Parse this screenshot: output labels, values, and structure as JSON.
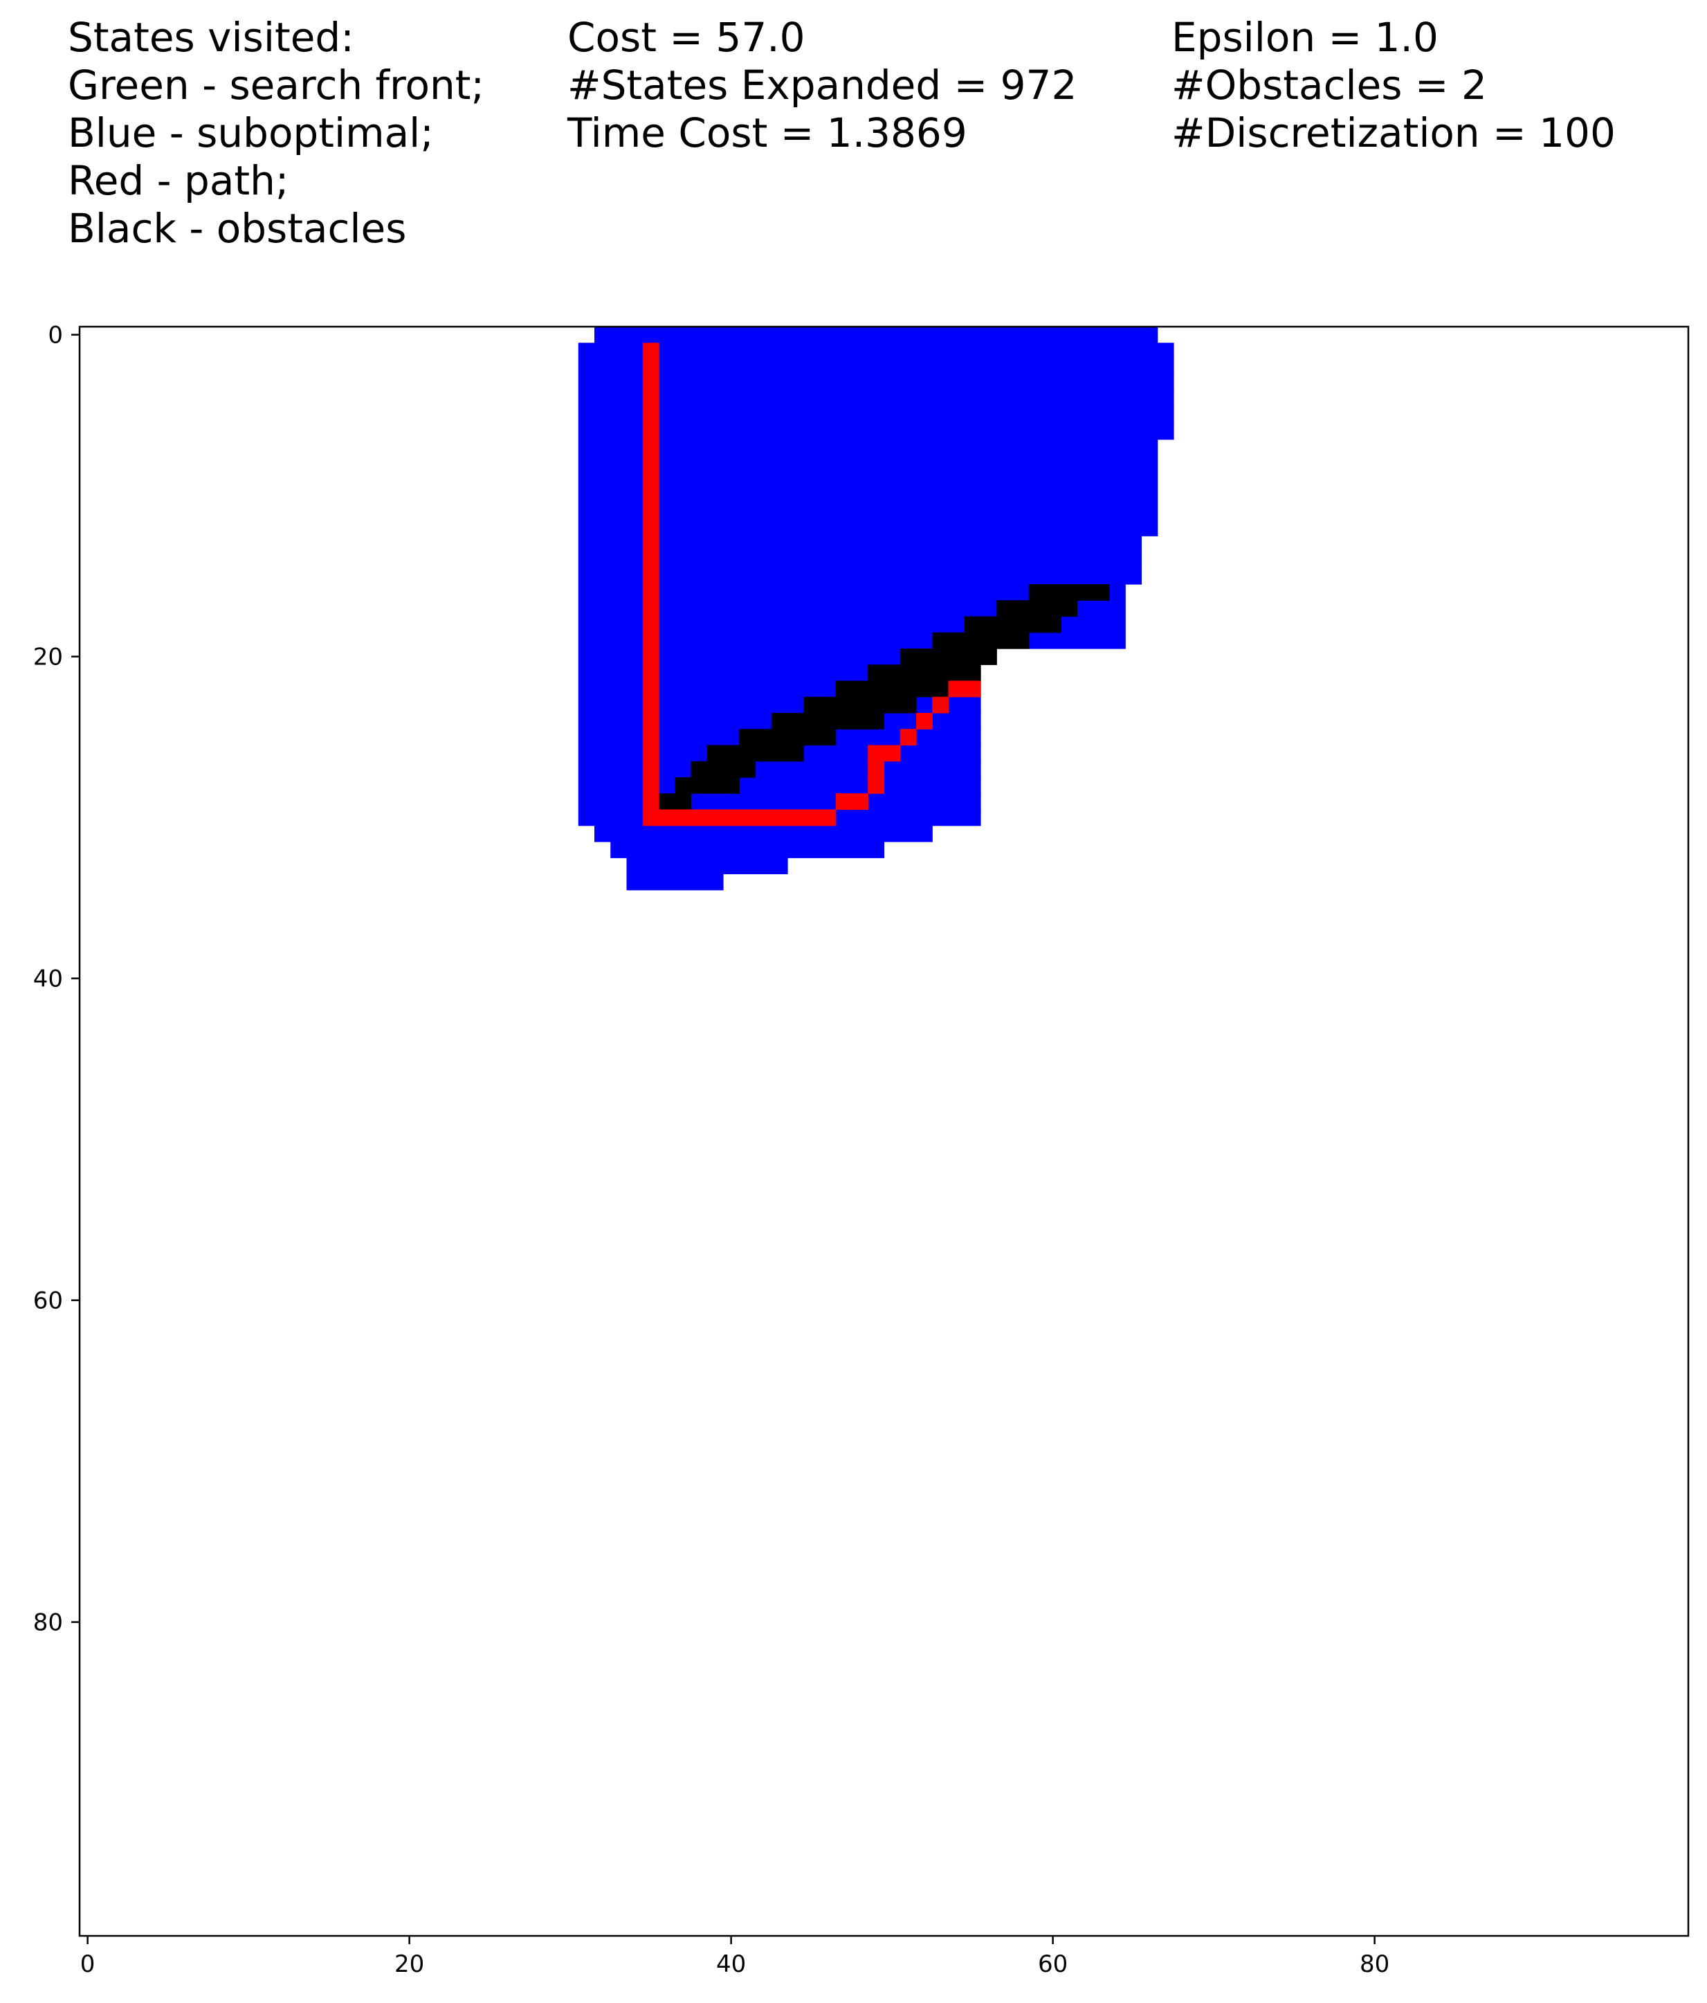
{
  "header": {
    "legend_lines": [
      "States visited:",
      "Green - search front;",
      "Blue - suboptimal;",
      "Red - path;",
      "Black - obstacles"
    ],
    "stats_lines": [
      "Cost = 57.0",
      "#States Expanded = 972",
      "Time Cost = 1.3869"
    ],
    "params_lines": [
      "Epsilon = 1.0",
      "#Obstacles = 2",
      "#Discretization = 100"
    ]
  },
  "colors": {
    "suboptimal": "#0000ff",
    "path": "#ff0000",
    "obstacle": "#000000",
    "search_front": "#00ff00",
    "background": "#ffffff"
  },
  "chart_data": {
    "type": "heatmap",
    "grid_size": 100,
    "xlim": [
      -0.5,
      99.5
    ],
    "ylim": [
      99.5,
      -0.5
    ],
    "y_inverted": true,
    "x_ticks": [
      0,
      20,
      40,
      60,
      80
    ],
    "y_ticks": [
      0,
      20,
      40,
      60,
      80
    ],
    "x_tick_labels": [
      "0",
      "20",
      "40",
      "60",
      "80"
    ],
    "y_tick_labels": [
      "0",
      "20",
      "40",
      "60",
      "80"
    ],
    "grid": false,
    "suboptimal_rows": [
      {
        "row": 0,
        "x": [
          32,
          66
        ]
      },
      {
        "row": 1,
        "x": [
          31,
          67
        ]
      },
      {
        "row": 2,
        "x": [
          31,
          67
        ]
      },
      {
        "row": 3,
        "x": [
          31,
          67
        ]
      },
      {
        "row": 4,
        "x": [
          31,
          67
        ]
      },
      {
        "row": 5,
        "x": [
          31,
          67
        ]
      },
      {
        "row": 6,
        "x": [
          31,
          67
        ]
      },
      {
        "row": 7,
        "x": [
          31,
          66
        ]
      },
      {
        "row": 8,
        "x": [
          31,
          66
        ]
      },
      {
        "row": 9,
        "x": [
          31,
          66
        ]
      },
      {
        "row": 10,
        "x": [
          31,
          66
        ]
      },
      {
        "row": 11,
        "x": [
          31,
          66
        ]
      },
      {
        "row": 12,
        "x": [
          31,
          66
        ]
      },
      {
        "row": 13,
        "x": [
          31,
          65
        ]
      },
      {
        "row": 14,
        "x": [
          31,
          65
        ]
      },
      {
        "row": 15,
        "x": [
          31,
          65
        ]
      },
      {
        "row": 16,
        "x": [
          31,
          64
        ]
      },
      {
        "row": 17,
        "x": [
          31,
          64
        ]
      },
      {
        "row": 18,
        "x": [
          31,
          64
        ]
      },
      {
        "row": 19,
        "x": [
          31,
          64
        ]
      },
      {
        "row": 20,
        "x": [
          31,
          55
        ]
      },
      {
        "row": 21,
        "x": [
          31,
          55
        ]
      },
      {
        "row": 22,
        "x": [
          31,
          55
        ]
      },
      {
        "row": 23,
        "x": [
          31,
          55
        ]
      },
      {
        "row": 24,
        "x": [
          31,
          55
        ]
      },
      {
        "row": 25,
        "x": [
          31,
          55
        ]
      },
      {
        "row": 26,
        "x": [
          31,
          55
        ]
      },
      {
        "row": 27,
        "x": [
          31,
          55
        ]
      },
      {
        "row": 28,
        "x": [
          31,
          55
        ]
      },
      {
        "row": 29,
        "x": [
          31,
          55
        ]
      },
      {
        "row": 30,
        "x": [
          31,
          55
        ]
      },
      {
        "row": 31,
        "x": [
          32,
          52
        ]
      },
      {
        "row": 32,
        "x": [
          33,
          49
        ]
      },
      {
        "row": 33,
        "x": [
          34,
          43
        ]
      },
      {
        "row": 34,
        "x": [
          34,
          39
        ]
      }
    ],
    "obstacle_rows": [
      {
        "row": 16,
        "x": [
          59,
          63
        ]
      },
      {
        "row": 17,
        "x": [
          57,
          61
        ]
      },
      {
        "row": 18,
        "x": [
          55,
          60
        ]
      },
      {
        "row": 19,
        "x": [
          53,
          58
        ]
      },
      {
        "row": 20,
        "x": [
          51,
          56
        ]
      },
      {
        "row": 21,
        "x": [
          49,
          55
        ]
      },
      {
        "row": 22,
        "x": [
          47,
          53
        ]
      },
      {
        "row": 23,
        "x": [
          45,
          51
        ]
      },
      {
        "row": 24,
        "x": [
          43,
          49
        ]
      },
      {
        "row": 25,
        "x": [
          41,
          46
        ]
      },
      {
        "row": 26,
        "x": [
          39,
          44
        ]
      },
      {
        "row": 27,
        "x": [
          38,
          41
        ]
      },
      {
        "row": 28,
        "x": [
          37,
          40
        ]
      },
      {
        "row": 29,
        "x": [
          36,
          37
        ]
      }
    ],
    "path_cells": [
      [
        35,
        1
      ],
      [
        35,
        2
      ],
      [
        35,
        3
      ],
      [
        35,
        4
      ],
      [
        35,
        5
      ],
      [
        35,
        6
      ],
      [
        35,
        7
      ],
      [
        35,
        8
      ],
      [
        35,
        9
      ],
      [
        35,
        10
      ],
      [
        35,
        11
      ],
      [
        35,
        12
      ],
      [
        35,
        13
      ],
      [
        35,
        14
      ],
      [
        35,
        15
      ],
      [
        35,
        16
      ],
      [
        35,
        17
      ],
      [
        35,
        18
      ],
      [
        35,
        19
      ],
      [
        35,
        20
      ],
      [
        35,
        21
      ],
      [
        35,
        22
      ],
      [
        35,
        23
      ],
      [
        35,
        24
      ],
      [
        35,
        25
      ],
      [
        35,
        26
      ],
      [
        35,
        27
      ],
      [
        35,
        28
      ],
      [
        35,
        29
      ],
      [
        35,
        30
      ],
      [
        36,
        30
      ],
      [
        37,
        30
      ],
      [
        38,
        30
      ],
      [
        39,
        30
      ],
      [
        40,
        30
      ],
      [
        41,
        30
      ],
      [
        42,
        30
      ],
      [
        43,
        30
      ],
      [
        44,
        30
      ],
      [
        45,
        30
      ],
      [
        46,
        30
      ],
      [
        47,
        29
      ],
      [
        48,
        29
      ],
      [
        49,
        28
      ],
      [
        49,
        27
      ],
      [
        49,
        26
      ],
      [
        50,
        26
      ],
      [
        51,
        25
      ],
      [
        52,
        24
      ],
      [
        53,
        23
      ],
      [
        54,
        22
      ],
      [
        55,
        22
      ]
    ]
  }
}
